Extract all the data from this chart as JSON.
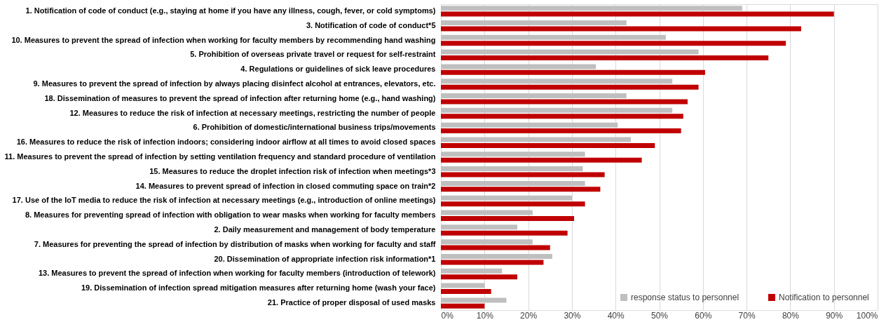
{
  "chart_data": {
    "type": "bar",
    "orientation": "horizontal",
    "categories": [
      "1. Notification of code of conduct (e.g., staying at home if you have any illness, cough, fever, or cold symptoms)",
      "3. Notification of code of conduct*5",
      "10. Measures to prevent the spread of infection when working for faculty members by recommending hand washing",
      "5. Prohibition of overseas private travel or request for self-restraint",
      "4. Regulations or guidelines of sick leave procedures",
      "9. Measures to prevent the spread of infection by always placing disinfect alcohol at entrances, elevators, etc.",
      "18. Dissemination of measures to prevent the spread of infection after returning home (e.g., hand washing)",
      "12. Measures to reduce the risk of infection at necessary meetings, restricting the number of people",
      "6. Prohibition of domestic/international business trips/movements",
      "16. Measures to reduce the risk of infection indoors; considering indoor airflow at all times to avoid closed spaces",
      "11. Measures to prevent the spread of infection by setting ventilation frequency and standard procedure of ventilation",
      "15. Measures to reduce the droplet infection risk of infection when meetings*3",
      "14.    Measures to prevent spread of infection in closed commuting space on train*2",
      "17.    Use of the IoT media  to reduce the risk of infection at necessary meetings (e.g., introduction of online meetings)",
      "8. Measures for preventing spread of infection with obligation to wear masks when working for faculty members",
      "2. Daily measurement and management of body temperature",
      "7. Measures for preventing the spread of infection by distribution of masks when working for faculty and staff",
      "20. Dissemination of appropriate infection risk information*1",
      "13. Measures to prevent the spread of infection when working for faculty members (introduction of telework)",
      "19. Dissemination of infection spread mitigation measures after returning home (wash your face)",
      "21. Practice of proper disposal of used masks"
    ],
    "series": [
      {
        "name": "response status to personnel",
        "color": "#bfbfbf",
        "values": [
          69.0,
          42.5,
          51.5,
          59.0,
          35.5,
          53.0,
          42.5,
          53.0,
          40.5,
          43.5,
          33.0,
          32.5,
          33.0,
          30.0,
          21.0,
          17.5,
          21.0,
          25.5,
          14.0,
          10.0,
          15.0
        ]
      },
      {
        "name": "Notification to personnel",
        "color": "#c00000",
        "values": [
          90.0,
          82.5,
          79.0,
          75.0,
          60.5,
          59.0,
          56.5,
          55.5,
          55.0,
          49.0,
          46.0,
          37.5,
          36.5,
          33.0,
          30.5,
          29.0,
          25.0,
          23.5,
          17.5,
          11.5,
          10.0
        ]
      }
    ],
    "xlim": [
      0,
      100
    ],
    "xticks": [
      {
        "value": 0,
        "label": "0%"
      },
      {
        "value": 10,
        "label": "10%"
      },
      {
        "value": 20,
        "label": "20%"
      },
      {
        "value": 30,
        "label": "30%"
      },
      {
        "value": 40,
        "label": "40%"
      },
      {
        "value": 50,
        "label": "50%"
      },
      {
        "value": 60,
        "label": "60%"
      },
      {
        "value": 70,
        "label": "70%"
      },
      {
        "value": 80,
        "label": "80%"
      },
      {
        "value": 90,
        "label": "90%"
      },
      {
        "value": 100,
        "label": "100%"
      }
    ],
    "grid": "x",
    "legend": "bottom right"
  }
}
